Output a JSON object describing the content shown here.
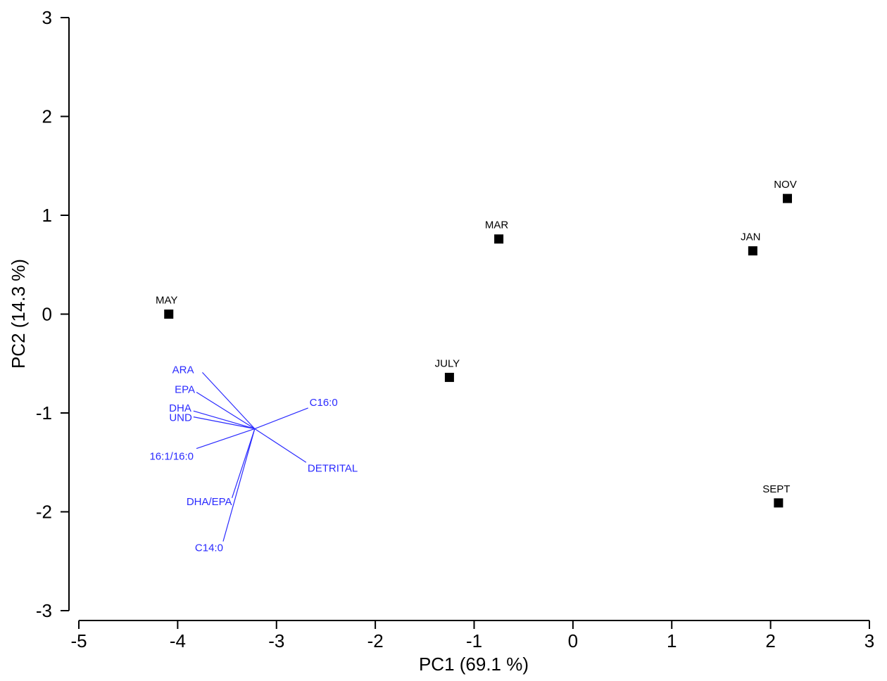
{
  "chart_data": {
    "type": "scatter",
    "title": "",
    "xlabel": "PC1 (69.1 %)",
    "ylabel": "PC2 (14.3 %)",
    "xlim": [
      -5,
      3
    ],
    "ylim": [
      -3,
      3
    ],
    "xticks": [
      -5,
      -4,
      -3,
      -2,
      -1,
      0,
      1,
      2,
      3
    ],
    "yticks": [
      3,
      2,
      1,
      0,
      -1,
      -2,
      -3
    ],
    "grid": false,
    "points": [
      {
        "label": "MAY",
        "x": -4.09,
        "y": 0.0
      },
      {
        "label": "MAR",
        "x": -0.75,
        "y": 0.76
      },
      {
        "label": "JULY",
        "x": -1.25,
        "y": -0.64
      },
      {
        "label": "JAN",
        "x": 1.82,
        "y": 0.64
      },
      {
        "label": "NOV",
        "x": 2.17,
        "y": 1.17
      },
      {
        "label": "SEPT",
        "x": 2.08,
        "y": -1.91
      }
    ],
    "vector_origin": {
      "x": -3.22,
      "y": -1.16
    },
    "vectors": [
      {
        "label": "ARA",
        "x": -3.75,
        "y": -0.59
      },
      {
        "label": "EPA",
        "x": -3.81,
        "y": -0.79
      },
      {
        "label": "DHA",
        "x": -3.84,
        "y": -0.98
      },
      {
        "label": "UND",
        "x": -3.84,
        "y": -1.04
      },
      {
        "label": "C16:0",
        "x": -2.68,
        "y": -0.95
      },
      {
        "label": "DETRITAL",
        "x": -2.7,
        "y": -1.5
      },
      {
        "label": "16:1/16:0",
        "x": -3.81,
        "y": -1.36
      },
      {
        "label": "DHA/EPA",
        "x": -3.45,
        "y": -1.86
      },
      {
        "label": "C14:0",
        "x": -3.54,
        "y": -2.3
      }
    ],
    "colors": {
      "points": "#000000",
      "vectors": "#2a2aff"
    }
  }
}
